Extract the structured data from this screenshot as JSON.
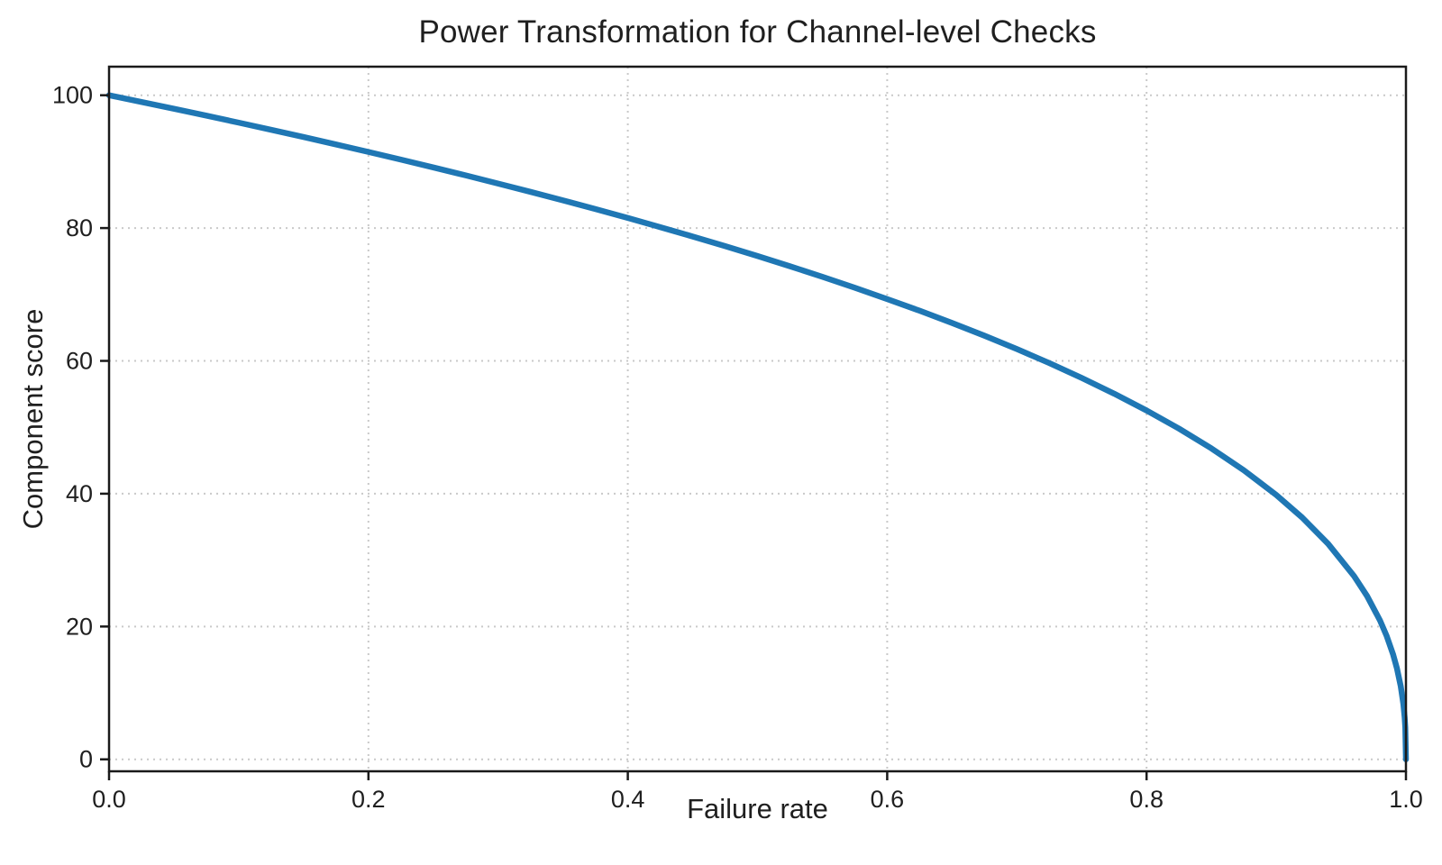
{
  "chart_data": {
    "type": "line",
    "title": "Power Transformation for Channel-level Checks",
    "xlabel": "Failure rate",
    "ylabel": "Component score",
    "xlim": [
      0,
      1
    ],
    "ylim": [
      -1.8,
      104.3
    ],
    "x_tick_values": [
      0,
      0.2,
      0.4,
      0.6,
      0.8,
      1.0
    ],
    "x_tick_labels": [
      "0.0",
      "0.2",
      "0.4",
      "0.6",
      "0.8",
      "1.0"
    ],
    "y_tick_values": [
      0,
      20,
      40,
      60,
      80,
      100
    ],
    "y_tick_labels": [
      "0",
      "20",
      "40",
      "60",
      "80",
      "100"
    ],
    "grid": true,
    "grid_style": "dotted",
    "grid_color": "#c9c9c9",
    "line_color": "#1f77b4",
    "line_width": 6.5,
    "spine_color": "#1a1a1a",
    "legend": false,
    "x": [
      0,
      0.025,
      0.05,
      0.075,
      0.1,
      0.125,
      0.15,
      0.175,
      0.2,
      0.225,
      0.25,
      0.275,
      0.3,
      0.325,
      0.35,
      0.375,
      0.4,
      0.425,
      0.45,
      0.475,
      0.5,
      0.525,
      0.55,
      0.575,
      0.6,
      0.625,
      0.65,
      0.675,
      0.7,
      0.725,
      0.75,
      0.775,
      0.8,
      0.825,
      0.85,
      0.875,
      0.9,
      0.92,
      0.94,
      0.96,
      0.97,
      0.98,
      0.985,
      0.99,
      0.993,
      0.996,
      0.998,
      0.999,
      0.9995,
      1.0
    ],
    "y": [
      100,
      98.99,
      97.97,
      96.93,
      95.87,
      94.8,
      93.71,
      92.59,
      91.46,
      90.31,
      89.13,
      87.93,
      86.7,
      85.45,
      84.17,
      82.86,
      81.52,
      80.14,
      78.73,
      77.28,
      75.79,
      74.25,
      72.66,
      71.02,
      69.31,
      67.55,
      65.71,
      63.79,
      61.78,
      59.67,
      57.43,
      55.06,
      52.53,
      49.8,
      46.82,
      43.53,
      39.81,
      36.41,
      32.45,
      27.59,
      24.6,
      20.91,
      18.64,
      15.85,
      13.74,
      10.99,
      8.33,
      6.31,
      4.78,
      0
    ]
  }
}
